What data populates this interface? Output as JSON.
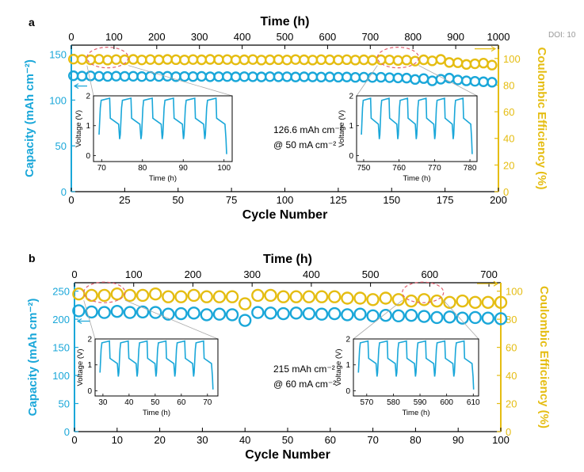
{
  "doi_fragment": "DOI: 10",
  "colors": {
    "capacity": "#1aa7d9",
    "ce": "#e5bd12",
    "highlight": "#e06070",
    "frame": "#000000"
  },
  "chart_data": [
    {
      "panel": "a",
      "type": "scatter",
      "title": "",
      "top_axis": {
        "label": "Time (h)",
        "range": [
          0,
          1000
        ],
        "ticks": [
          "0",
          "100",
          "200",
          "300",
          "400",
          "500",
          "600",
          "700",
          "800",
          "900",
          "1000"
        ]
      },
      "xlabel": "Cycle Number",
      "xlim": [
        0,
        200
      ],
      "xticks": [
        "0",
        "25",
        "50",
        "75",
        "100",
        "125",
        "150",
        "175",
        "200"
      ],
      "y_left": {
        "label": "Capacity (mAh cm⁻²)",
        "range": [
          0,
          160
        ],
        "ticks": [
          "0",
          "50",
          "100",
          "150"
        ]
      },
      "y_right": {
        "label": "Coulombic Efficiency (%)",
        "range": [
          0,
          110
        ],
        "ticks": [
          "0",
          "20",
          "40",
          "60",
          "80",
          "100"
        ]
      },
      "annotation": [
        "126.6 mAh cm⁻²",
        "@ 50 mA cm⁻²"
      ],
      "series": [
        {
          "axis": "left",
          "x": [
            1,
            5,
            9,
            13,
            17,
            21,
            25,
            29,
            33,
            37,
            41,
            45,
            49,
            53,
            57,
            61,
            65,
            69,
            73,
            77,
            81,
            85,
            89,
            93,
            97,
            101,
            105,
            109,
            113,
            117,
            121,
            125,
            129,
            133,
            137,
            141,
            145,
            149,
            153,
            157,
            161,
            165,
            169,
            173,
            177,
            181,
            185,
            189,
            193,
            197
          ],
          "values": [
            126.6,
            126.2,
            126.4,
            126.0,
            125.8,
            126.1,
            125.9,
            126.0,
            125.7,
            125.9,
            125.8,
            126.0,
            125.6,
            125.8,
            125.7,
            125.9,
            125.5,
            125.6,
            125.7,
            125.4,
            125.6,
            125.5,
            125.3,
            125.6,
            125.4,
            125.5,
            125.2,
            125.4,
            125.3,
            125.1,
            125.3,
            125.0,
            125.2,
            124.8,
            125.0,
            124.7,
            124.9,
            124.5,
            124.2,
            124.0,
            122.5,
            123.5,
            121.0,
            122.8,
            124.0,
            122.0,
            121.0,
            120.5,
            120.0,
            119.5
          ]
        },
        {
          "axis": "right",
          "x": [
            1,
            5,
            9,
            13,
            17,
            21,
            25,
            29,
            33,
            37,
            41,
            45,
            49,
            53,
            57,
            61,
            65,
            69,
            73,
            77,
            81,
            85,
            89,
            93,
            97,
            101,
            105,
            109,
            113,
            117,
            121,
            125,
            129,
            133,
            137,
            141,
            145,
            149,
            153,
            157,
            161,
            165,
            169,
            173,
            177,
            181,
            185,
            189,
            193,
            197
          ],
          "values": [
            99.5,
            99.2,
            99.0,
            99.4,
            98.8,
            99.2,
            99.0,
            99.3,
            98.9,
            99.2,
            99.0,
            99.3,
            99.1,
            98.9,
            99.2,
            99.0,
            99.3,
            99.1,
            99.2,
            98.9,
            99.0,
            99.2,
            98.8,
            99.0,
            99.1,
            98.9,
            99.2,
            99.0,
            98.8,
            99.1,
            99.0,
            98.9,
            99.1,
            98.8,
            99.0,
            98.7,
            99.0,
            98.9,
            98.5,
            98.8,
            98.0,
            99.0,
            98.2,
            99.3,
            97.0,
            96.8,
            95.5,
            96.0,
            96.5,
            95.0
          ]
        }
      ],
      "insets": [
        {
          "xlabel": "Time (h)",
          "ylabel": "Voltage (V)",
          "xticks": [
            "70",
            "80",
            "90",
            "100"
          ],
          "yticks": [
            "0",
            "1",
            "2"
          ],
          "xlim": [
            68,
            102
          ],
          "ylim": [
            -0.2,
            2.0
          ]
        },
        {
          "xlabel": "Time (h)",
          "ylabel": "Voltage (V)",
          "xticks": [
            "750",
            "760",
            "770",
            "780"
          ],
          "yticks": [
            "0",
            "1",
            "2"
          ],
          "xlim": [
            748,
            782
          ],
          "ylim": [
            -0.2,
            2.0
          ]
        }
      ]
    },
    {
      "panel": "b",
      "type": "scatter",
      "title": "",
      "top_axis": {
        "label": "Time (h)",
        "range": [
          0,
          720
        ],
        "ticks": [
          "0",
          "100",
          "200",
          "300",
          "400",
          "500",
          "600",
          "700"
        ]
      },
      "xlabel": "Cycle Number",
      "xlim": [
        0,
        100
      ],
      "xticks": [
        "0",
        "10",
        "20",
        "30",
        "40",
        "50",
        "60",
        "70",
        "80",
        "90",
        "100"
      ],
      "y_left": {
        "label": "Capacity (mAh cm⁻²)",
        "range": [
          0,
          265
        ],
        "ticks": [
          "0",
          "50",
          "100",
          "150",
          "200",
          "250"
        ]
      },
      "y_right": {
        "label": "Coulombic Efficiency (%)",
        "range": [
          0,
          106
        ],
        "ticks": [
          "0",
          "20",
          "40",
          "60",
          "80",
          "100"
        ]
      },
      "annotation": [
        "215 mAh cm⁻²",
        "@ 60 mA cm⁻²"
      ],
      "series": [
        {
          "axis": "left",
          "x": [
            1,
            4,
            7,
            10,
            13,
            16,
            19,
            22,
            25,
            28,
            31,
            34,
            37,
            40,
            43,
            46,
            49,
            52,
            55,
            58,
            61,
            64,
            67,
            70,
            73,
            76,
            79,
            82,
            85,
            88,
            91,
            94,
            97,
            100
          ],
          "values": [
            215,
            213,
            212,
            214,
            212,
            213,
            212,
            209,
            210,
            211,
            208,
            209,
            208,
            198,
            212,
            211,
            210,
            211,
            210,
            209,
            210,
            208,
            209,
            206,
            207,
            206,
            207,
            205,
            203,
            204,
            202,
            203,
            202,
            201
          ]
        },
        {
          "axis": "right",
          "x": [
            1,
            4,
            7,
            10,
            13,
            16,
            19,
            22,
            25,
            28,
            31,
            34,
            37,
            40,
            43,
            46,
            49,
            52,
            55,
            58,
            61,
            64,
            67,
            70,
            73,
            76,
            79,
            82,
            85,
            88,
            91,
            94,
            97,
            100
          ],
          "values": [
            98,
            97,
            97,
            98,
            97,
            97,
            98,
            96,
            96,
            97,
            96,
            96,
            96,
            91,
            97,
            97,
            96,
            96,
            96,
            96,
            96,
            95,
            95,
            94,
            95,
            94,
            93,
            94,
            93,
            92,
            93,
            92,
            92,
            92
          ]
        }
      ],
      "insets": [
        {
          "xlabel": "Time (h)",
          "ylabel": "Voltage (V)",
          "xticks": [
            "30",
            "40",
            "50",
            "60",
            "70"
          ],
          "yticks": [
            "0",
            "1",
            "2"
          ],
          "xlim": [
            27,
            74
          ],
          "ylim": [
            -0.2,
            2.0
          ]
        },
        {
          "xlabel": "Time (h)",
          "ylabel": "Voltage (V)",
          "xticks": [
            "570",
            "580",
            "590",
            "600",
            "610"
          ],
          "yticks": [
            "0",
            "1",
            "2"
          ],
          "xlim": [
            565,
            612
          ],
          "ylim": [
            -0.2,
            2.0
          ]
        }
      ]
    }
  ]
}
